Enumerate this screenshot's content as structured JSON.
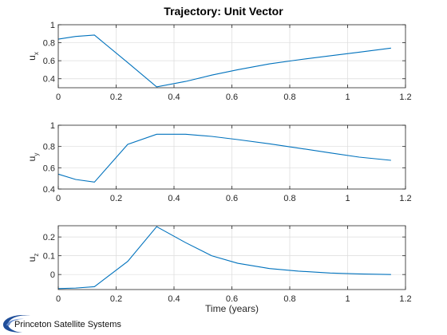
{
  "title": "Trajectory: Unit Vector",
  "logo": {
    "text": "Princeton Satellite Systems"
  },
  "colors": {
    "series": "#0072bd",
    "grid": "#dcdcdc",
    "axes": "#262626"
  },
  "chart_data": [
    {
      "type": "line",
      "ylabel_main": "u",
      "ylabel_sub": "x",
      "xlabel": "",
      "xlim": [
        0,
        1.2
      ],
      "ylim": [
        0.3,
        1.0
      ],
      "grid": true,
      "xticks": [
        0,
        0.2,
        0.4,
        0.6,
        0.8,
        1,
        1.2
      ],
      "yticks": [
        0.4,
        0.6,
        0.8,
        1
      ],
      "x": [
        0,
        0.06,
        0.125,
        0.24,
        0.34,
        0.44,
        0.53,
        0.62,
        0.73,
        0.83,
        0.94,
        1.04,
        1.15
      ],
      "values": [
        0.84,
        0.87,
        0.885,
        0.58,
        0.31,
        0.37,
        0.44,
        0.5,
        0.565,
        0.61,
        0.655,
        0.695,
        0.74
      ]
    },
    {
      "type": "line",
      "ylabel_main": "u",
      "ylabel_sub": "y",
      "xlabel": "",
      "xlim": [
        0,
        1.2
      ],
      "ylim": [
        0.4,
        1.0
      ],
      "grid": true,
      "xticks": [
        0,
        0.2,
        0.4,
        0.6,
        0.8,
        1,
        1.2
      ],
      "yticks": [
        0.4,
        0.6,
        0.8,
        1
      ],
      "x": [
        0,
        0.06,
        0.125,
        0.24,
        0.34,
        0.44,
        0.53,
        0.62,
        0.73,
        0.83,
        0.94,
        1.04,
        1.15
      ],
      "values": [
        0.54,
        0.49,
        0.465,
        0.82,
        0.915,
        0.915,
        0.895,
        0.865,
        0.825,
        0.785,
        0.74,
        0.7,
        0.67
      ]
    },
    {
      "type": "line",
      "ylabel_main": "u",
      "ylabel_sub": "z",
      "xlabel": "Time (years)",
      "xlim": [
        0,
        1.2
      ],
      "ylim": [
        -0.08,
        0.26
      ],
      "grid": true,
      "xticks": [
        0,
        0.2,
        0.4,
        0.6,
        0.8,
        1,
        1.2
      ],
      "yticks": [
        0,
        0.1,
        0.2
      ],
      "x": [
        0,
        0.06,
        0.125,
        0.24,
        0.34,
        0.44,
        0.53,
        0.62,
        0.73,
        0.83,
        0.94,
        1.04,
        1.15
      ],
      "values": [
        -0.075,
        -0.072,
        -0.065,
        0.07,
        0.255,
        0.17,
        0.1,
        0.06,
        0.032,
        0.018,
        0.008,
        0.003,
        0.0
      ]
    }
  ]
}
